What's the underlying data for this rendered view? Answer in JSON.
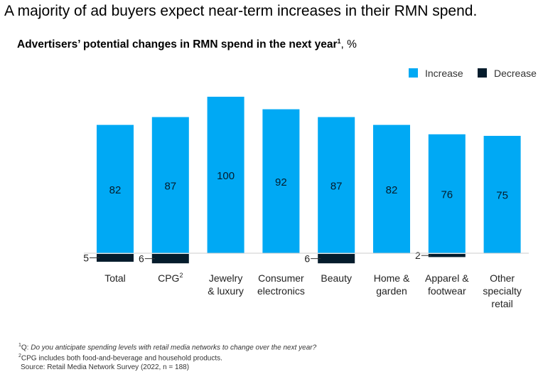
{
  "title": "A majority of ad buyers expect near-term increases in their RMN spend.",
  "subtitle": "Advertisers’ potential changes in RMN spend in the next year",
  "subtitle_footnote": "1",
  "subtitle_unit": ",  %",
  "chart_data": {
    "type": "bar",
    "categories": [
      "Total",
      "CPG",
      "Jewelry\n& luxury",
      "Consumer\nelectronics",
      "Beauty",
      "Home &\ngarden",
      "Apparel &\nfootwear",
      "Other\nspecialty\nretail"
    ],
    "category_footnotes": [
      "",
      "2",
      "",
      "",
      "",
      "",
      "",
      ""
    ],
    "series": [
      {
        "name": "Increase",
        "color": "#00A9F4",
        "values": [
          82,
          87,
          100,
          92,
          87,
          82,
          76,
          75
        ]
      },
      {
        "name": "Decrease",
        "color": "#051C2C",
        "values": [
          5,
          6,
          null,
          null,
          6,
          null,
          2,
          null
        ]
      }
    ],
    "legend_position": "top-right",
    "grid": false
  },
  "footnotes": {
    "note1_marker": "1",
    "note1_prefix": "Q: ",
    "note1_text": "Do you anticipate spending levels with retail media networks to change over the next year?",
    "note2_marker": "2",
    "note2_text": "CPG includes both food-and-beverage and household products.",
    "source": "Source: Retail Media Network Survey (2022, n = 188)"
  }
}
